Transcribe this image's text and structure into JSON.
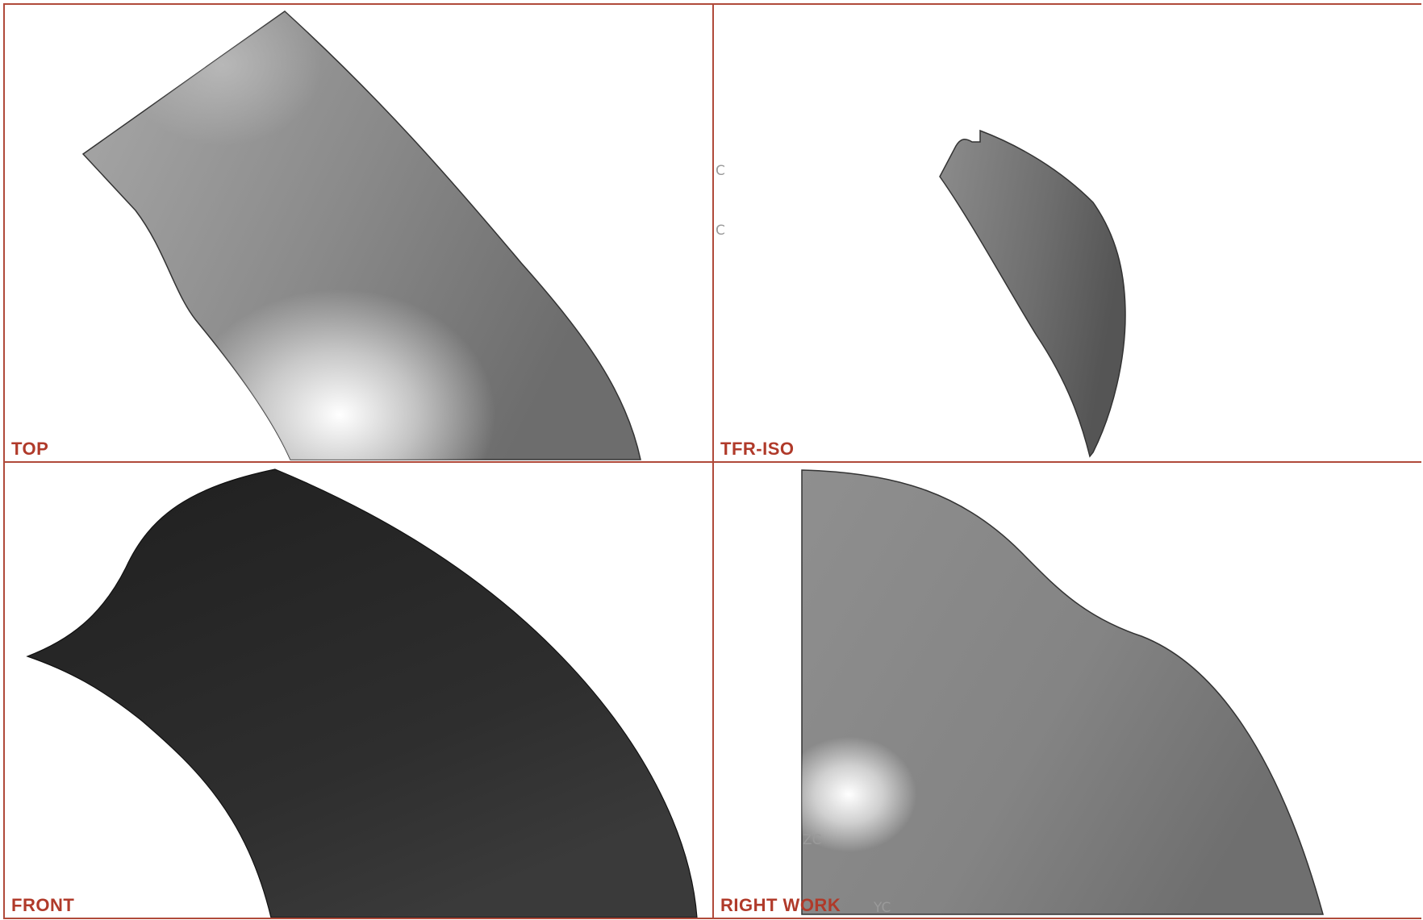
{
  "viewports": {
    "top": {
      "label": "TOP"
    },
    "tfr_iso": {
      "label": "TFR-ISO",
      "axis_labels": [
        "C",
        "C"
      ]
    },
    "front": {
      "label": "FRONT"
    },
    "right_work": {
      "label": "RIGHT WORK",
      "axis_labels": [
        "ZC",
        "YC"
      ]
    }
  },
  "colors": {
    "frame": "#b04a3a",
    "label": "#b03a2a",
    "surface_light": "#8a8a8a",
    "surface_dark": "#222222"
  }
}
